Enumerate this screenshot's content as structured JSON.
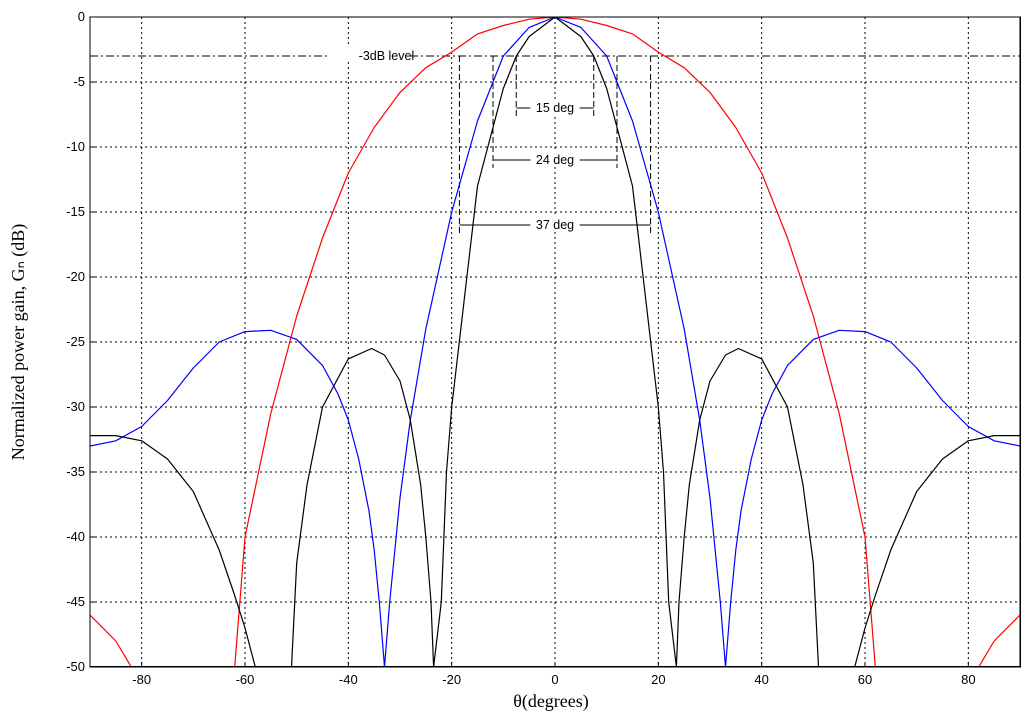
{
  "chart_data": {
    "type": "line",
    "xlabel": "θ(degrees)",
    "ylabel": "Normalized power gain, Gₙ (dB)",
    "xlim": [
      -90,
      90
    ],
    "ylim": [
      -50,
      0
    ],
    "xticks": [
      -80,
      -60,
      -40,
      -20,
      0,
      20,
      40,
      60,
      80
    ],
    "yticks": [
      0,
      -5,
      -10,
      -15,
      -20,
      -25,
      -30,
      -35,
      -40,
      -45,
      -50
    ],
    "grid": true,
    "series": [
      {
        "color": "#ff0000",
        "x": [
          -90,
          -85,
          -82,
          -80,
          -75,
          -70,
          -65,
          -62,
          -60,
          -55,
          -50,
          -45,
          -40,
          -35,
          -30,
          -25,
          -20,
          -15,
          -10,
          -5,
          0,
          5,
          10,
          15,
          20,
          25,
          30,
          35,
          40,
          45,
          50,
          55,
          60,
          62,
          65,
          70,
          75,
          80,
          82,
          85,
          90
        ],
        "y": [
          -46,
          -48,
          -50,
          null,
          null,
          null,
          null,
          -50,
          -40,
          -30.5,
          -23,
          -17,
          -12,
          -8.5,
          -5.8,
          -3.9,
          -2.7,
          -1.3,
          -0.65,
          -0.17,
          0,
          -0.17,
          -0.65,
          -1.3,
          -2.7,
          -3.9,
          -5.8,
          -8.5,
          -12,
          -17,
          -23,
          -30.5,
          -40,
          -50,
          null,
          null,
          null,
          null,
          -50,
          -48,
          -46
        ]
      },
      {
        "color": "#0000ff",
        "x": [
          -90,
          -85,
          -80,
          -75,
          -70,
          -65,
          -60,
          -55,
          -50,
          -45,
          -42,
          -40,
          -38,
          -36,
          -35,
          -34,
          -33,
          -32,
          -30,
          -28,
          -25,
          -20,
          -15,
          -12,
          -10,
          -5,
          0,
          5,
          10,
          12,
          15,
          20,
          25,
          28,
          30,
          32,
          33,
          34,
          35,
          36,
          38,
          40,
          42,
          45,
          50,
          55,
          60,
          65,
          70,
          75,
          80,
          85,
          90
        ],
        "y": [
          -33,
          -32.6,
          -31.5,
          -29.5,
          -27,
          -25,
          -24.2,
          -24.1,
          -24.8,
          -26.8,
          -29,
          -31,
          -34,
          -38,
          -41,
          -45,
          -50,
          -45,
          -37,
          -31,
          -24,
          -15,
          -8,
          -5,
          -3,
          -0.8,
          0,
          -0.8,
          -3,
          -5,
          -8,
          -15,
          -24,
          -31,
          -37,
          -45,
          -50,
          -45,
          -41,
          -38,
          -34,
          -31,
          -29,
          -26.8,
          -24.8,
          -24.1,
          -24.2,
          -25,
          -27,
          -29.5,
          -31.5,
          -32.6,
          -33
        ]
      },
      {
        "color": "#000000",
        "x": [
          -90,
          -85,
          -80,
          -75,
          -70,
          -65,
          -62,
          -60,
          -58,
          -57.5,
          -56,
          -55,
          -53,
          -51,
          -50,
          -48,
          -45,
          -40,
          -35.5,
          -33,
          -30,
          -28,
          -26,
          -25,
          -24,
          -23.5,
          -22,
          -21,
          -20,
          -15,
          -10,
          -7.5,
          -5,
          0,
          5,
          7.5,
          10,
          15,
          20,
          21,
          22,
          23.5,
          24,
          25,
          26,
          28,
          30,
          33,
          35.5,
          40,
          45,
          48,
          50,
          51,
          53,
          55,
          56,
          57.5,
          58,
          60,
          62,
          65,
          70,
          75,
          80,
          85,
          90
        ],
        "y": [
          -32.2,
          -32.2,
          -32.6,
          -34,
          -36.5,
          -41,
          -44.5,
          -47,
          -50,
          null,
          null,
          null,
          null,
          -50,
          -42,
          -36,
          -30,
          -26.3,
          -25.5,
          -26,
          -28,
          -31,
          -36,
          -40,
          -45,
          -50,
          -45,
          -35,
          -30,
          -13,
          -5.5,
          -3,
          -1.5,
          0,
          -1.5,
          -3,
          -5.5,
          -13,
          -30,
          -35,
          -45,
          -50,
          -45,
          -40,
          -36,
          -31,
          -28,
          -26,
          -25.5,
          -26.3,
          -30,
          -36,
          -42,
          -50,
          null,
          null,
          null,
          null,
          -50,
          -47,
          -44.5,
          -41,
          -36.5,
          -34,
          -32.6,
          -32.2,
          -32.2
        ]
      }
    ],
    "level_line": {
      "y": -3,
      "label": "-3dB level"
    },
    "beamwidth_markers": [
      {
        "x1": -7.5,
        "x2": 7.5,
        "y": -7,
        "label": "15 deg"
      },
      {
        "x1": -12,
        "x2": 12,
        "y": -11,
        "label": "24 deg"
      },
      {
        "x1": -18.5,
        "x2": 18.5,
        "y": -16,
        "label": "37 deg"
      }
    ]
  }
}
